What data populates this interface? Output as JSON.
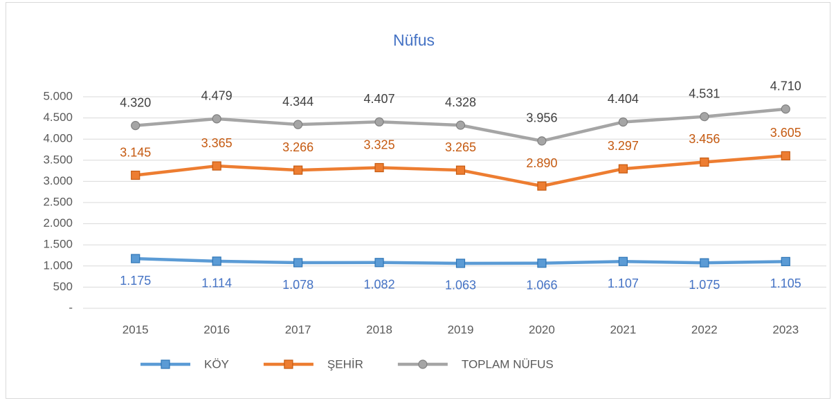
{
  "chart_data": {
    "type": "line",
    "title": "Nüfus",
    "categories": [
      "2015",
      "2016",
      "2017",
      "2018",
      "2019",
      "2020",
      "2021",
      "2022",
      "2023"
    ],
    "series": [
      {
        "name": "KÖY",
        "color": "#5b9bd5",
        "label_color": "#4472c4",
        "marker": "square",
        "values": [
          1175,
          1114,
          1078,
          1082,
          1063,
          1066,
          1107,
          1075,
          1105
        ],
        "value_labels": [
          "1.175",
          "1.114",
          "1.078",
          "1.082",
          "1.063",
          "1.066",
          "1.107",
          "1.075",
          "1.105"
        ]
      },
      {
        "name": "ŞEHİR",
        "color": "#ed7d31",
        "label_color": "#c55a11",
        "marker": "square",
        "values": [
          3145,
          3365,
          3266,
          3325,
          3265,
          2890,
          3297,
          3456,
          3605
        ],
        "value_labels": [
          "3.145",
          "3.365",
          "3.266",
          "3.325",
          "3.265",
          "2.890",
          "3.297",
          "3.456",
          "3.605"
        ]
      },
      {
        "name": "TOPLAM NÜFUS",
        "color": "#a5a5a5",
        "label_color": "#404040",
        "marker": "circle",
        "values": [
          4320,
          4479,
          4344,
          4407,
          4328,
          3956,
          4404,
          4531,
          4710
        ],
        "value_labels": [
          "4.320",
          "4.479",
          "4.344",
          "4.407",
          "4.328",
          "3.956",
          "4.404",
          "4.531",
          "4.710"
        ]
      }
    ],
    "ylim": [
      0,
      5000
    ],
    "yticks": [
      {
        "value": 0,
        "label": "-"
      },
      500,
      {
        "value": 1000,
        "label": "1.000"
      },
      {
        "value": 1500,
        "label": "1.500"
      },
      {
        "value": 2000,
        "label": "2.000"
      },
      {
        "value": 2500,
        "label": "2.500"
      },
      {
        "value": 3000,
        "label": "3.000"
      },
      {
        "value": 3500,
        "label": "3.500"
      },
      {
        "value": 4000,
        "label": "4.000"
      },
      {
        "value": 4500,
        "label": "4.500"
      },
      {
        "value": 5000,
        "label": "5.000"
      }
    ],
    "grid": true,
    "legend": "bottom"
  }
}
